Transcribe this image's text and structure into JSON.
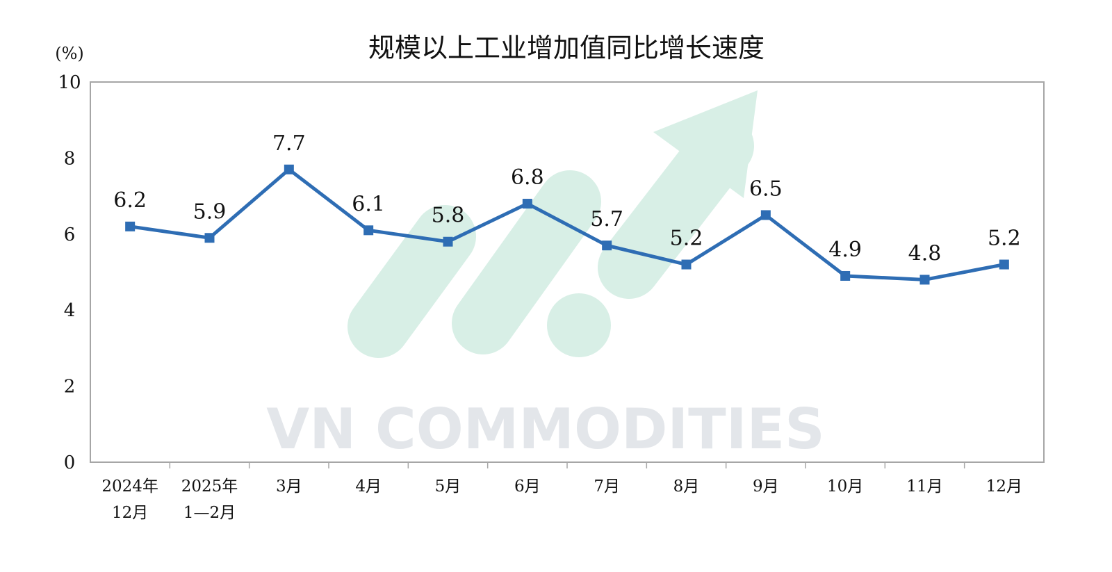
{
  "chart_data": {
    "type": "line",
    "title": "规模以上工业增加值同比增长速度",
    "ylabel": "(%)",
    "ylim": [
      0,
      10
    ],
    "yticks": [
      0,
      2,
      4,
      6,
      8,
      10
    ],
    "categories": [
      [
        "2024年",
        "12月"
      ],
      [
        "2025年",
        "1—2月"
      ],
      [
        "3月"
      ],
      [
        "4月"
      ],
      [
        "5月"
      ],
      [
        "6月"
      ],
      [
        "7月"
      ],
      [
        "8月"
      ],
      [
        "9月"
      ],
      [
        "10月"
      ],
      [
        "11月"
      ],
      [
        "12月"
      ]
    ],
    "series": [
      {
        "values": [
          6.2,
          5.9,
          7.7,
          6.1,
          5.8,
          6.8,
          5.7,
          5.2,
          6.5,
          4.9,
          4.8,
          5.2
        ]
      }
    ],
    "data_labels": [
      "6.2",
      "5.9",
      "7.7",
      "6.1",
      "5.8",
      "6.8",
      "5.7",
      "5.2",
      "6.5",
      "4.9",
      "4.8",
      "5.2"
    ],
    "grid": false,
    "legend": "none",
    "line_color": "#2e6db4"
  },
  "watermark": {
    "text": "VN COMMODITIES",
    "text_color": "#e3e6ea",
    "shape_color": "#d8efe6"
  }
}
